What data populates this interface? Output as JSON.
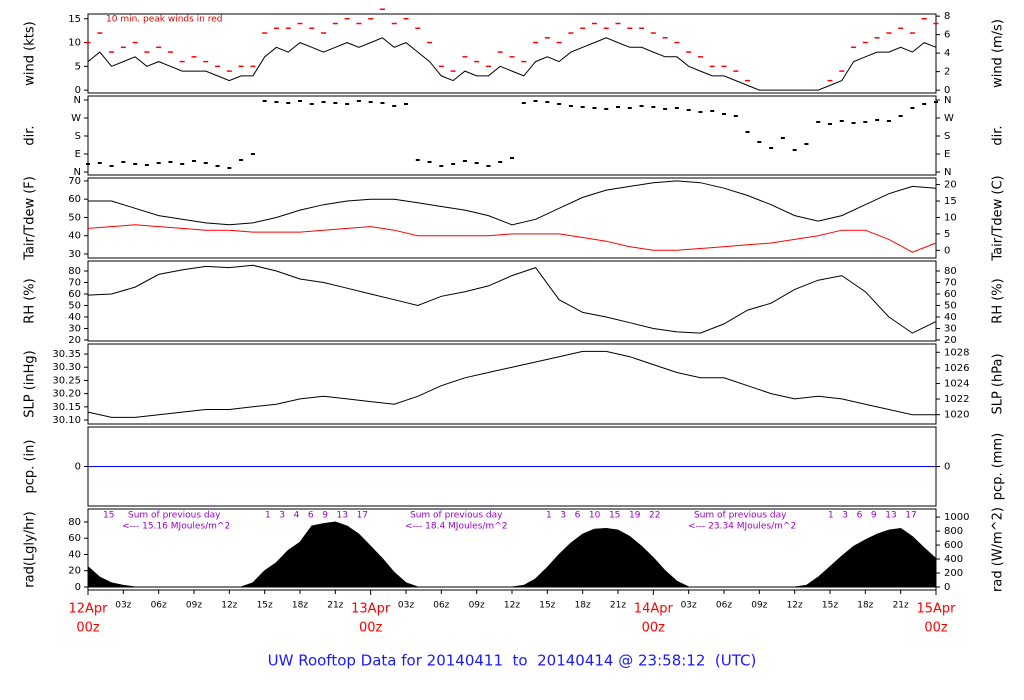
{
  "page_title": "UW Rooftop Data for 20140411  to  20140414 @ 23:58:12  (UTC)",
  "chart_data": [
    {
      "type": "line",
      "ylabel": "wind (kts)",
      "y2label": "wind (m/s)",
      "xlim": [
        0,
        72
      ],
      "ylim": [
        -0.6,
        16
      ],
      "yticks": [
        0,
        5,
        10,
        15
      ],
      "y2lim": [
        -0.31,
        8.23
      ],
      "y2ticks": [
        0,
        2,
        4,
        6,
        8
      ],
      "annotations": [
        "10 min. peak winds in red"
      ],
      "annotation_color": "#dd0000",
      "x": [
        0,
        1,
        2,
        3,
        4,
        5,
        6,
        7,
        8,
        9,
        10,
        11,
        12,
        13,
        14,
        15,
        16,
        17,
        18,
        19,
        20,
        21,
        22,
        23,
        24,
        25,
        26,
        27,
        28,
        29,
        30,
        31,
        32,
        33,
        34,
        35,
        36,
        37,
        38,
        39,
        40,
        41,
        42,
        43,
        44,
        45,
        46,
        47,
        48,
        49,
        50,
        51,
        52,
        53,
        54,
        55,
        56,
        57,
        58,
        59,
        60,
        61,
        62,
        63,
        64,
        65,
        66,
        67,
        68,
        69,
        70,
        71,
        72
      ],
      "series": [
        {
          "style": "line",
          "color": "#000000",
          "values": [
            6,
            8,
            5,
            6,
            7,
            5,
            6,
            5,
            4,
            4,
            4,
            3,
            2,
            3,
            3,
            7,
            9,
            8,
            10,
            9,
            8,
            9,
            10,
            9,
            10,
            11,
            9,
            10,
            8,
            6,
            3,
            2,
            4,
            3,
            3,
            5,
            4,
            3,
            6,
            7,
            6,
            8,
            9,
            10,
            11,
            10,
            9,
            9,
            8,
            7,
            7,
            5,
            4,
            3,
            3,
            2,
            1,
            0,
            0,
            0,
            0,
            0,
            0,
            1,
            2,
            6,
            7,
            8,
            8,
            9,
            8,
            10,
            9
          ]
        },
        {
          "style": "dash",
          "color": "#ff0000",
          "values": [
            10,
            12,
            8,
            9,
            10,
            8,
            9,
            8,
            6,
            7,
            6,
            5,
            4,
            5,
            5,
            12,
            13,
            13,
            14,
            13,
            12,
            14,
            15,
            14,
            15,
            17,
            14,
            15,
            13,
            10,
            5,
            4,
            7,
            6,
            5,
            8,
            7,
            6,
            10,
            11,
            10,
            12,
            13,
            14,
            13,
            14,
            13,
            13,
            12,
            11,
            10,
            8,
            7,
            5,
            5,
            4,
            2,
            null,
            null,
            null,
            null,
            null,
            null,
            2,
            4,
            9,
            10,
            11,
            12,
            13,
            12,
            15,
            14
          ]
        }
      ]
    },
    {
      "type": "scatter",
      "ylabel": "dir.",
      "y2label": "dir.",
      "xlim": [
        0,
        72
      ],
      "ylim": [
        -15,
        380
      ],
      "yticks": [
        {
          "value": 0,
          "label": "N"
        },
        {
          "value": 90,
          "label": "E"
        },
        {
          "value": 180,
          "label": "S"
        },
        {
          "value": 270,
          "label": "W"
        },
        {
          "value": 360,
          "label": "N"
        }
      ],
      "y2lim": [
        -15,
        380
      ],
      "y2ticks": [
        {
          "value": 0,
          "label": "N"
        },
        {
          "value": 90,
          "label": "E"
        },
        {
          "value": 180,
          "label": "S"
        },
        {
          "value": 270,
          "label": "W"
        },
        {
          "value": 360,
          "label": "N"
        }
      ],
      "x": [
        0,
        1,
        2,
        3,
        4,
        5,
        6,
        7,
        8,
        9,
        10,
        11,
        12,
        13,
        14,
        15,
        16,
        17,
        18,
        19,
        20,
        21,
        22,
        23,
        24,
        25,
        26,
        27,
        28,
        29,
        30,
        31,
        32,
        33,
        34,
        35,
        36,
        37,
        38,
        39,
        40,
        41,
        42,
        43,
        44,
        45,
        46,
        47,
        48,
        49,
        50,
        51,
        52,
        53,
        54,
        55,
        56,
        57,
        58,
        59,
        60,
        61,
        62,
        63,
        64,
        65,
        66,
        67,
        68,
        69,
        70,
        71,
        72
      ],
      "series": [
        {
          "style": "points",
          "color": "#000000",
          "values": [
            40,
            45,
            30,
            50,
            40,
            35,
            45,
            50,
            40,
            55,
            45,
            30,
            20,
            60,
            90,
            355,
            350,
            345,
            355,
            340,
            350,
            345,
            340,
            355,
            350,
            345,
            330,
            340,
            60,
            50,
            30,
            40,
            55,
            45,
            30,
            50,
            70,
            345,
            355,
            350,
            340,
            330,
            325,
            320,
            315,
            325,
            320,
            330,
            325,
            315,
            320,
            310,
            300,
            305,
            290,
            280,
            200,
            150,
            120,
            170,
            110,
            140,
            250,
            240,
            255,
            245,
            250,
            260,
            255,
            280,
            320,
            340,
            350
          ]
        }
      ]
    },
    {
      "type": "line",
      "ylabel": "Tair/Tdew (F)",
      "y2label": "Tair/Tdew (C)",
      "xlim": [
        0,
        72
      ],
      "ylim": [
        27.8,
        71.6
      ],
      "yticks": [
        30,
        40,
        50,
        60,
        70
      ],
      "y2lim": [
        -2.33,
        22
      ],
      "y2ticks": [
        0,
        5,
        10,
        15,
        20
      ],
      "x": [
        0,
        2,
        4,
        6,
        8,
        10,
        12,
        14,
        16,
        18,
        20,
        22,
        24,
        26,
        28,
        30,
        32,
        34,
        36,
        38,
        40,
        42,
        44,
        46,
        48,
        50,
        52,
        54,
        56,
        58,
        60,
        62,
        64,
        66,
        68,
        70,
        72
      ],
      "series": [
        {
          "style": "line",
          "color": "#000000",
          "values": [
            59,
            59,
            55,
            51,
            49,
            47,
            46,
            47,
            50,
            54,
            57,
            59,
            60,
            60,
            58,
            56,
            54,
            51,
            46,
            49,
            55,
            61,
            65,
            67,
            69,
            70,
            69,
            66,
            62,
            57,
            51,
            48,
            51,
            57,
            63,
            67,
            66
          ]
        },
        {
          "style": "line",
          "color": "#ff0000",
          "values": [
            44,
            45,
            46,
            45,
            44,
            43,
            43,
            42,
            42,
            42,
            43,
            44,
            45,
            43,
            40,
            40,
            40,
            40,
            41,
            41,
            41,
            39,
            37,
            34,
            32,
            32,
            33,
            34,
            35,
            36,
            38,
            40,
            43,
            43,
            38,
            31,
            36
          ]
        }
      ]
    },
    {
      "type": "line",
      "ylabel": "RH (%)",
      "y2label": "RH (%)",
      "xlim": [
        0,
        72
      ],
      "ylim": [
        19.1,
        88.7
      ],
      "yticks": [
        20,
        30,
        40,
        50,
        60,
        70,
        80
      ],
      "y2lim": [
        19.1,
        88.7
      ],
      "y2ticks": [
        20,
        30,
        40,
        50,
        60,
        70,
        80
      ],
      "x": [
        0,
        2,
        4,
        6,
        8,
        10,
        12,
        14,
        16,
        18,
        20,
        22,
        24,
        26,
        28,
        30,
        32,
        34,
        36,
        38,
        40,
        42,
        44,
        46,
        48,
        50,
        52,
        54,
        56,
        58,
        60,
        62,
        64,
        66,
        68,
        70,
        72
      ],
      "series": [
        {
          "style": "line",
          "color": "#000000",
          "values": [
            59,
            60,
            66,
            77,
            81,
            84,
            83,
            85,
            80,
            73,
            70,
            65,
            60,
            55,
            50,
            58,
            62,
            67,
            76,
            83,
            55,
            44,
            40,
            35,
            30,
            27,
            26,
            34,
            46,
            52,
            64,
            72,
            76,
            62,
            40,
            26,
            36
          ]
        }
      ]
    },
    {
      "type": "line",
      "ylabel": "SLP (inHg)",
      "y2label": "SLP (hPa)",
      "xlim": [
        0,
        72
      ],
      "ylim": [
        30.085,
        30.388
      ],
      "yticks": [
        {
          "value": 30.1,
          "label": "30.10"
        },
        30.15,
        {
          "value": 30.2,
          "label": "30.20"
        },
        30.25,
        {
          "value": 30.3,
          "label": "30.30"
        },
        30.35
      ],
      "y2lim": [
        1018.8,
        1029.06
      ],
      "y2ticks": [
        1020,
        1022,
        1024,
        1026,
        1028
      ],
      "x": [
        0,
        2,
        4,
        6,
        8,
        10,
        12,
        14,
        16,
        18,
        20,
        22,
        24,
        26,
        28,
        30,
        32,
        34,
        36,
        38,
        40,
        42,
        44,
        46,
        48,
        50,
        52,
        54,
        56,
        58,
        60,
        62,
        64,
        66,
        68,
        70,
        72
      ],
      "series": [
        {
          "style": "line",
          "color": "#000000",
          "values": [
            30.13,
            30.11,
            30.11,
            30.12,
            30.13,
            30.14,
            30.14,
            30.15,
            30.16,
            30.18,
            30.19,
            30.18,
            30.17,
            30.16,
            30.19,
            30.23,
            30.26,
            30.28,
            30.3,
            30.32,
            30.34,
            30.36,
            30.36,
            30.34,
            30.31,
            30.28,
            30.26,
            30.26,
            30.23,
            30.2,
            30.18,
            30.19,
            30.18,
            30.16,
            30.14,
            30.12,
            30.12
          ]
        }
      ]
    },
    {
      "type": "line",
      "ylabel": "pcp. (in)",
      "y2label": "pcp. (mm)",
      "xlim": [
        0,
        72
      ],
      "ylim": [
        -1,
        1
      ],
      "yticks": [
        0
      ],
      "y2lim": [
        -25.4,
        25.4
      ],
      "y2ticks": [
        0
      ],
      "x": [
        0,
        72
      ],
      "series": [
        {
          "style": "line",
          "color": "#0000ff",
          "values": [
            0,
            0
          ]
        }
      ]
    },
    {
      "type": "area",
      "ylabel": "rad(Lgly/hr)",
      "y2label": "rad (W/m^2)",
      "xlim": [
        0,
        72
      ],
      "ylim": [
        -3.7,
        96
      ],
      "yticks": [
        0,
        20,
        40,
        60,
        80
      ],
      "y2lim": [
        -43,
        1116
      ],
      "y2ticks": [
        0,
        200,
        400,
        600,
        800,
        1000
      ],
      "annotations": [
        "15",
        "Sum of previous day",
        "<--- 15.16 MJoules/m^2",
        "1   3   4   6   9   13   17",
        "Sum of previous day",
        "<--- 18.4 MJoules/m^2",
        "1   3   6   10   15   19   22",
        "Sum of previous day",
        "<--- 23.34 MJoules/m^2",
        "1   3   6   9   13   17"
      ],
      "annotation_color": "#9900cc",
      "x": [
        0,
        1,
        2,
        3,
        4,
        5,
        6,
        7,
        8,
        9,
        10,
        11,
        12,
        13,
        14,
        15,
        16,
        17,
        18,
        19,
        20,
        21,
        22,
        23,
        24,
        25,
        26,
        27,
        28,
        29,
        30,
        31,
        32,
        33,
        34,
        35,
        36,
        37,
        38,
        39,
        40,
        41,
        42,
        43,
        44,
        45,
        46,
        47,
        48,
        49,
        50,
        51,
        52,
        53,
        54,
        55,
        56,
        57,
        58,
        59,
        60,
        61,
        62,
        63,
        64,
        65,
        66,
        67,
        68,
        69,
        70,
        71,
        72
      ],
      "series": [
        {
          "style": "area",
          "color": "#000000",
          "values": [
            25,
            12,
            5,
            2,
            0,
            0,
            0,
            0,
            0,
            0,
            0,
            0,
            0,
            0,
            5,
            20,
            30,
            45,
            55,
            75,
            78,
            80,
            75,
            65,
            50,
            35,
            18,
            5,
            0,
            0,
            0,
            0,
            0,
            0,
            0,
            0,
            0,
            2,
            10,
            24,
            40,
            54,
            65,
            71,
            72,
            70,
            62,
            50,
            36,
            20,
            7,
            0,
            0,
            0,
            0,
            0,
            0,
            0,
            0,
            0,
            0,
            2,
            12,
            25,
            38,
            50,
            58,
            65,
            70,
            72,
            62,
            48,
            35
          ]
        }
      ],
      "xticks": [
        {
          "value": 3,
          "label": "03z"
        },
        {
          "value": 6,
          "label": "06z"
        },
        {
          "value": 9,
          "label": "09z"
        },
        {
          "value": 12,
          "label": "12z"
        },
        {
          "value": 15,
          "label": "15z"
        },
        {
          "value": 18,
          "label": "18z"
        },
        {
          "value": 21,
          "label": "21z"
        },
        {
          "value": 27,
          "label": "03z"
        },
        {
          "value": 30,
          "label": "06z"
        },
        {
          "value": 33,
          "label": "09z"
        },
        {
          "value": 36,
          "label": "12z"
        },
        {
          "value": 39,
          "label": "15z"
        },
        {
          "value": 42,
          "label": "18z"
        },
        {
          "value": 45,
          "label": "21z"
        },
        {
          "value": 51,
          "label": "03z"
        },
        {
          "value": 54,
          "label": "06z"
        },
        {
          "value": 57,
          "label": "09z"
        },
        {
          "value": 60,
          "label": "12z"
        },
        {
          "value": 63,
          "label": "15z"
        },
        {
          "value": 66,
          "label": "18z"
        },
        {
          "value": 69,
          "label": "21z"
        }
      ],
      "day_ticks": [
        {
          "value": 0,
          "label": "12Apr",
          "sub": "00z"
        },
        {
          "value": 24,
          "label": "13Apr",
          "sub": "00z"
        },
        {
          "value": 48,
          "label": "14Apr",
          "sub": "00z"
        },
        {
          "value": 72,
          "label": "15Apr",
          "sub": "00z"
        }
      ],
      "day_tick_color": "#ff0000"
    }
  ]
}
